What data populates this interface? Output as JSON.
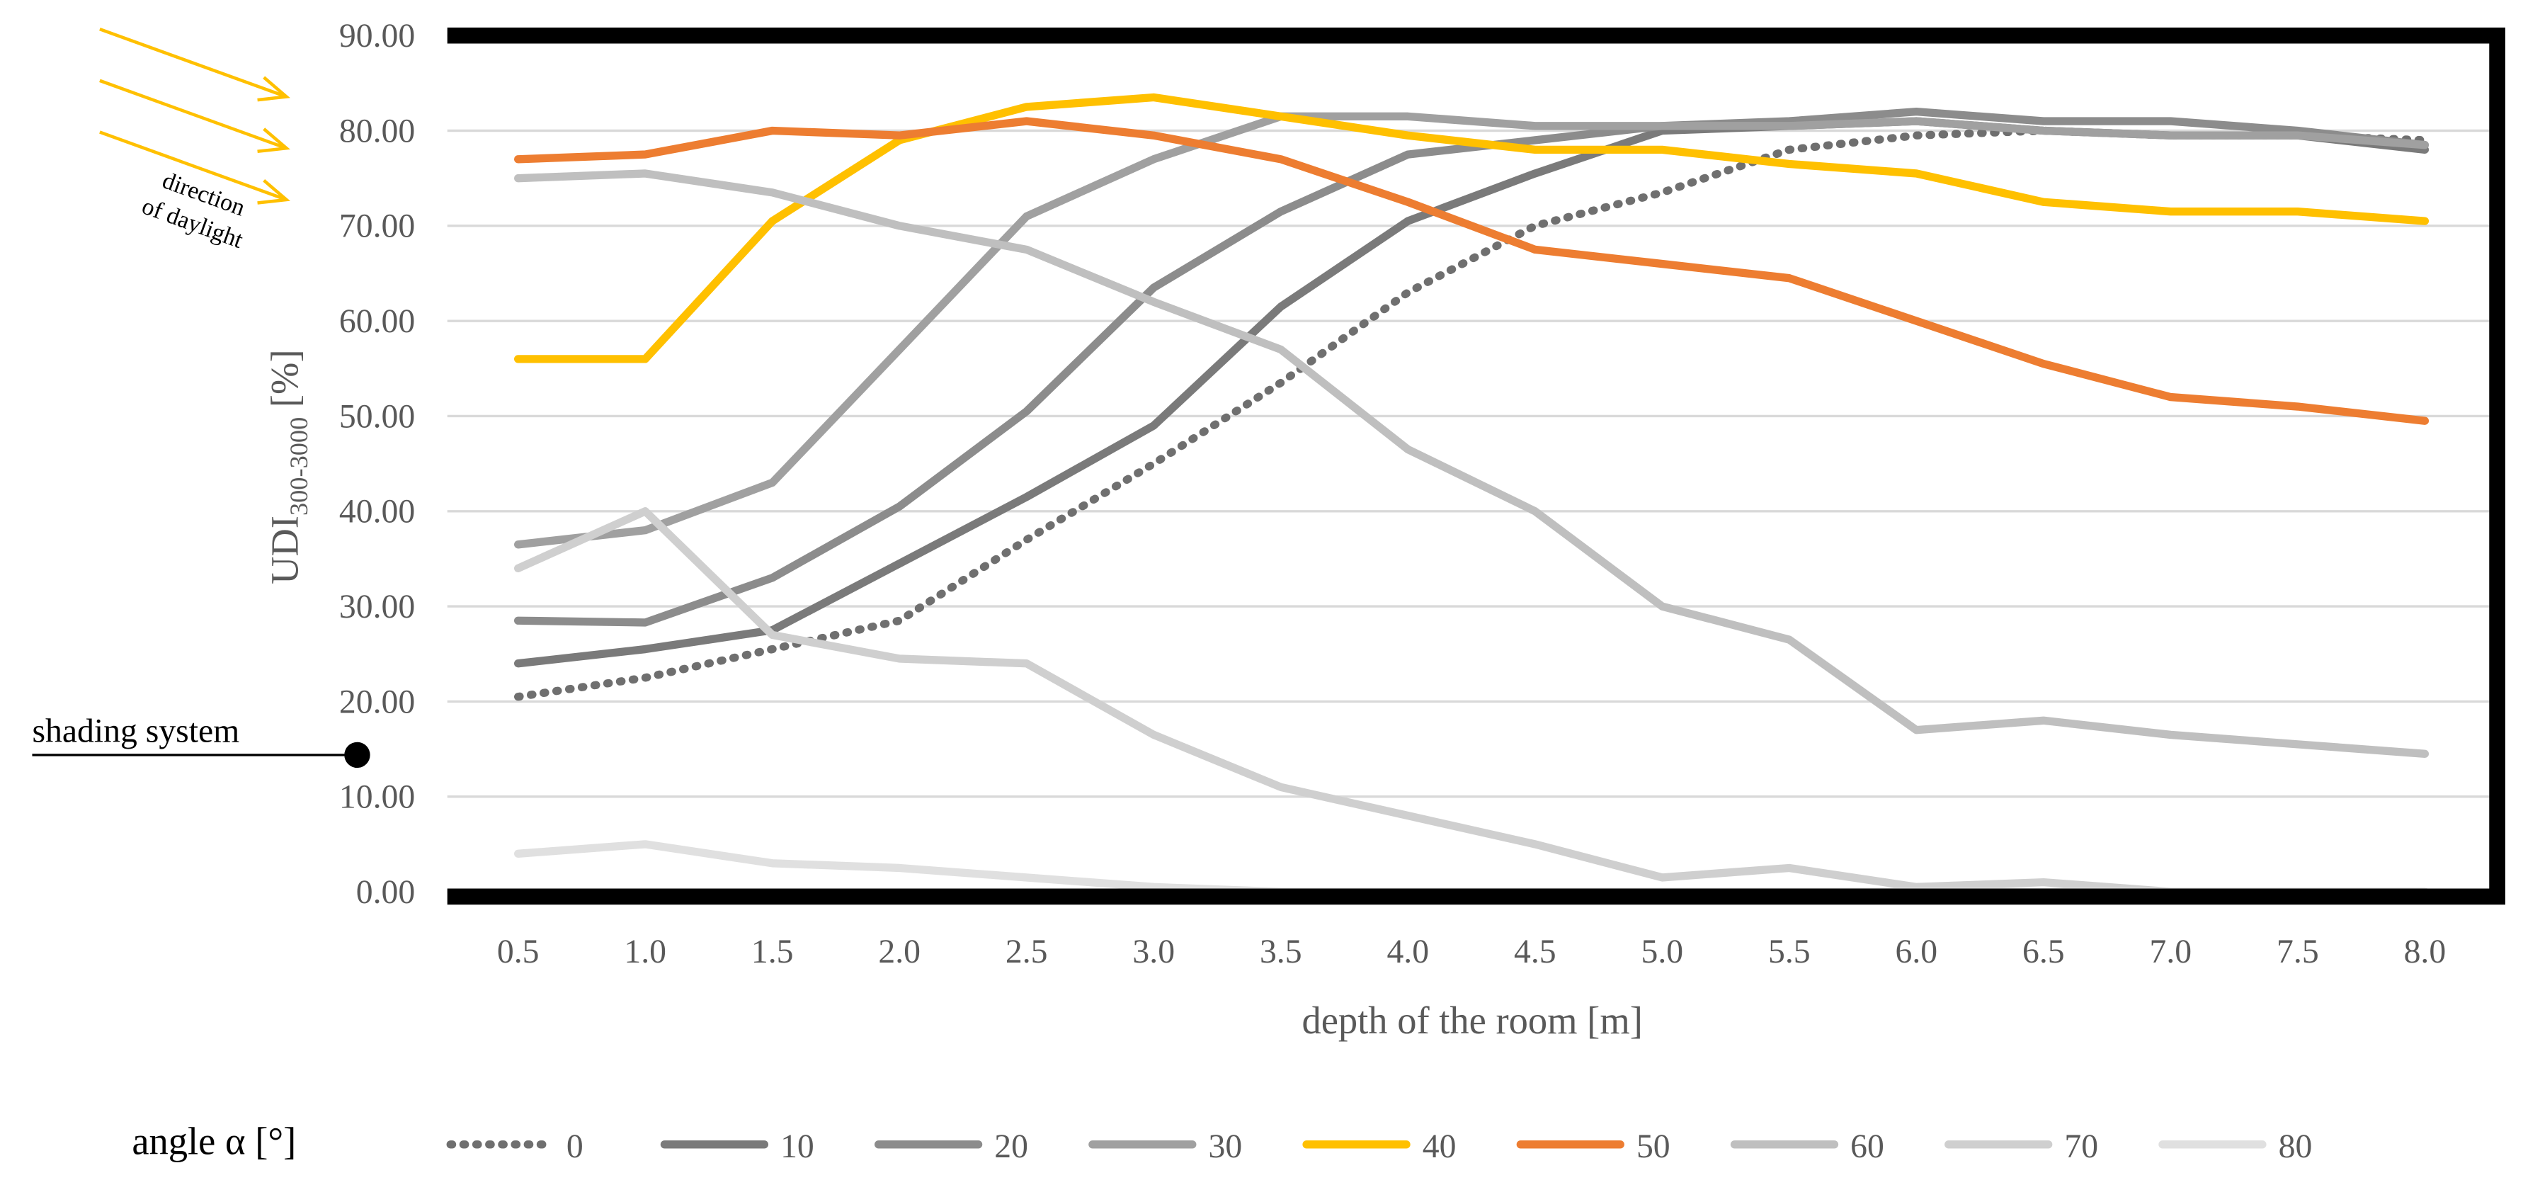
{
  "chart_data": {
    "type": "line",
    "ylabel": "UDI",
    "ylabel_sub": "300-3000",
    "ylabel_unit": "[%]",
    "xlabel": "depth of the room [m]",
    "annotations": {
      "daylight_line1": "direction",
      "daylight_line2": "of daylight",
      "shading": "shading system"
    },
    "legend_title": "angle α [°]",
    "categories": [
      "0.5",
      "1.0",
      "1.5",
      "2.0",
      "2.5",
      "3.0",
      "3.5",
      "4.0",
      "4.5",
      "5.0",
      "5.5",
      "6.0",
      "6.5",
      "7.0",
      "7.5",
      "8.0"
    ],
    "ylim": [
      0,
      90
    ],
    "yticks": [
      {
        "value": 0,
        "label": "0.00"
      },
      {
        "value": 10,
        "label": "10.00"
      },
      {
        "value": 20,
        "label": "20.00"
      },
      {
        "value": 30,
        "label": "30.00"
      },
      {
        "value": 40,
        "label": "40.00"
      },
      {
        "value": 50,
        "label": "50.00"
      },
      {
        "value": 60,
        "label": "60.00"
      },
      {
        "value": 70,
        "label": "70.00"
      },
      {
        "value": 80,
        "label": "80.00"
      },
      {
        "value": 90,
        "label": "90.00"
      }
    ],
    "grid": true,
    "series": [
      {
        "name": "0",
        "color": "#6f6f6f",
        "style": "dotted",
        "values": [
          20.5,
          22.5,
          25.5,
          28.5,
          37,
          45,
          53.5,
          63,
          70,
          73.5,
          78,
          79.5,
          80,
          79.5,
          79.5,
          79
        ]
      },
      {
        "name": "10",
        "color": "#7a7a7a",
        "style": "solid",
        "values": [
          24,
          25.5,
          27.5,
          34.5,
          41.5,
          49,
          61.5,
          70.5,
          75.5,
          80,
          80.5,
          81,
          80,
          79.5,
          79.5,
          78
        ]
      },
      {
        "name": "20",
        "color": "#8c8c8c",
        "style": "solid",
        "values": [
          28.5,
          28.3,
          33,
          40.5,
          50.5,
          63.5,
          71.5,
          77.5,
          79,
          80.5,
          81,
          82,
          81,
          81,
          80,
          78.5
        ]
      },
      {
        "name": "30",
        "color": "#a0a0a0",
        "style": "solid",
        "values": [
          36.5,
          38,
          43,
          57,
          71,
          77,
          81.5,
          81.5,
          80.5,
          80.5,
          80.5,
          81,
          80,
          79.5,
          79.5,
          78.5
        ]
      },
      {
        "name": "40",
        "color": "#ffc000",
        "style": "solid",
        "values": [
          56,
          56,
          70.5,
          79,
          82.5,
          83.5,
          81.5,
          79.5,
          78,
          78,
          76.5,
          75.5,
          72.5,
          71.5,
          71.5,
          70.5
        ]
      },
      {
        "name": "50",
        "color": "#ed7d31",
        "style": "solid",
        "values": [
          77,
          77.5,
          80,
          79.5,
          81,
          79.5,
          77,
          72.5,
          67.5,
          66,
          64.5,
          60,
          55.5,
          52,
          51,
          49.5
        ]
      },
      {
        "name": "60",
        "color": "#bfbfbf",
        "style": "solid",
        "values": [
          75,
          75.5,
          73.5,
          70,
          67.5,
          62,
          57,
          46.5,
          40,
          30,
          26.5,
          17,
          18,
          16.5,
          15.5,
          14.5
        ]
      },
      {
        "name": "70",
        "color": "#cfcfcf",
        "style": "solid",
        "values": [
          34,
          40,
          27,
          24.5,
          24,
          16.5,
          11,
          8,
          5,
          1.5,
          2.5,
          0.5,
          1,
          0,
          0,
          0
        ]
      },
      {
        "name": "80",
        "color": "#e0e0e0",
        "style": "solid",
        "values": [
          4,
          5,
          3,
          2.5,
          1.5,
          0.5,
          0,
          0,
          0,
          0,
          0,
          0,
          0,
          0,
          0,
          0
        ]
      }
    ]
  }
}
